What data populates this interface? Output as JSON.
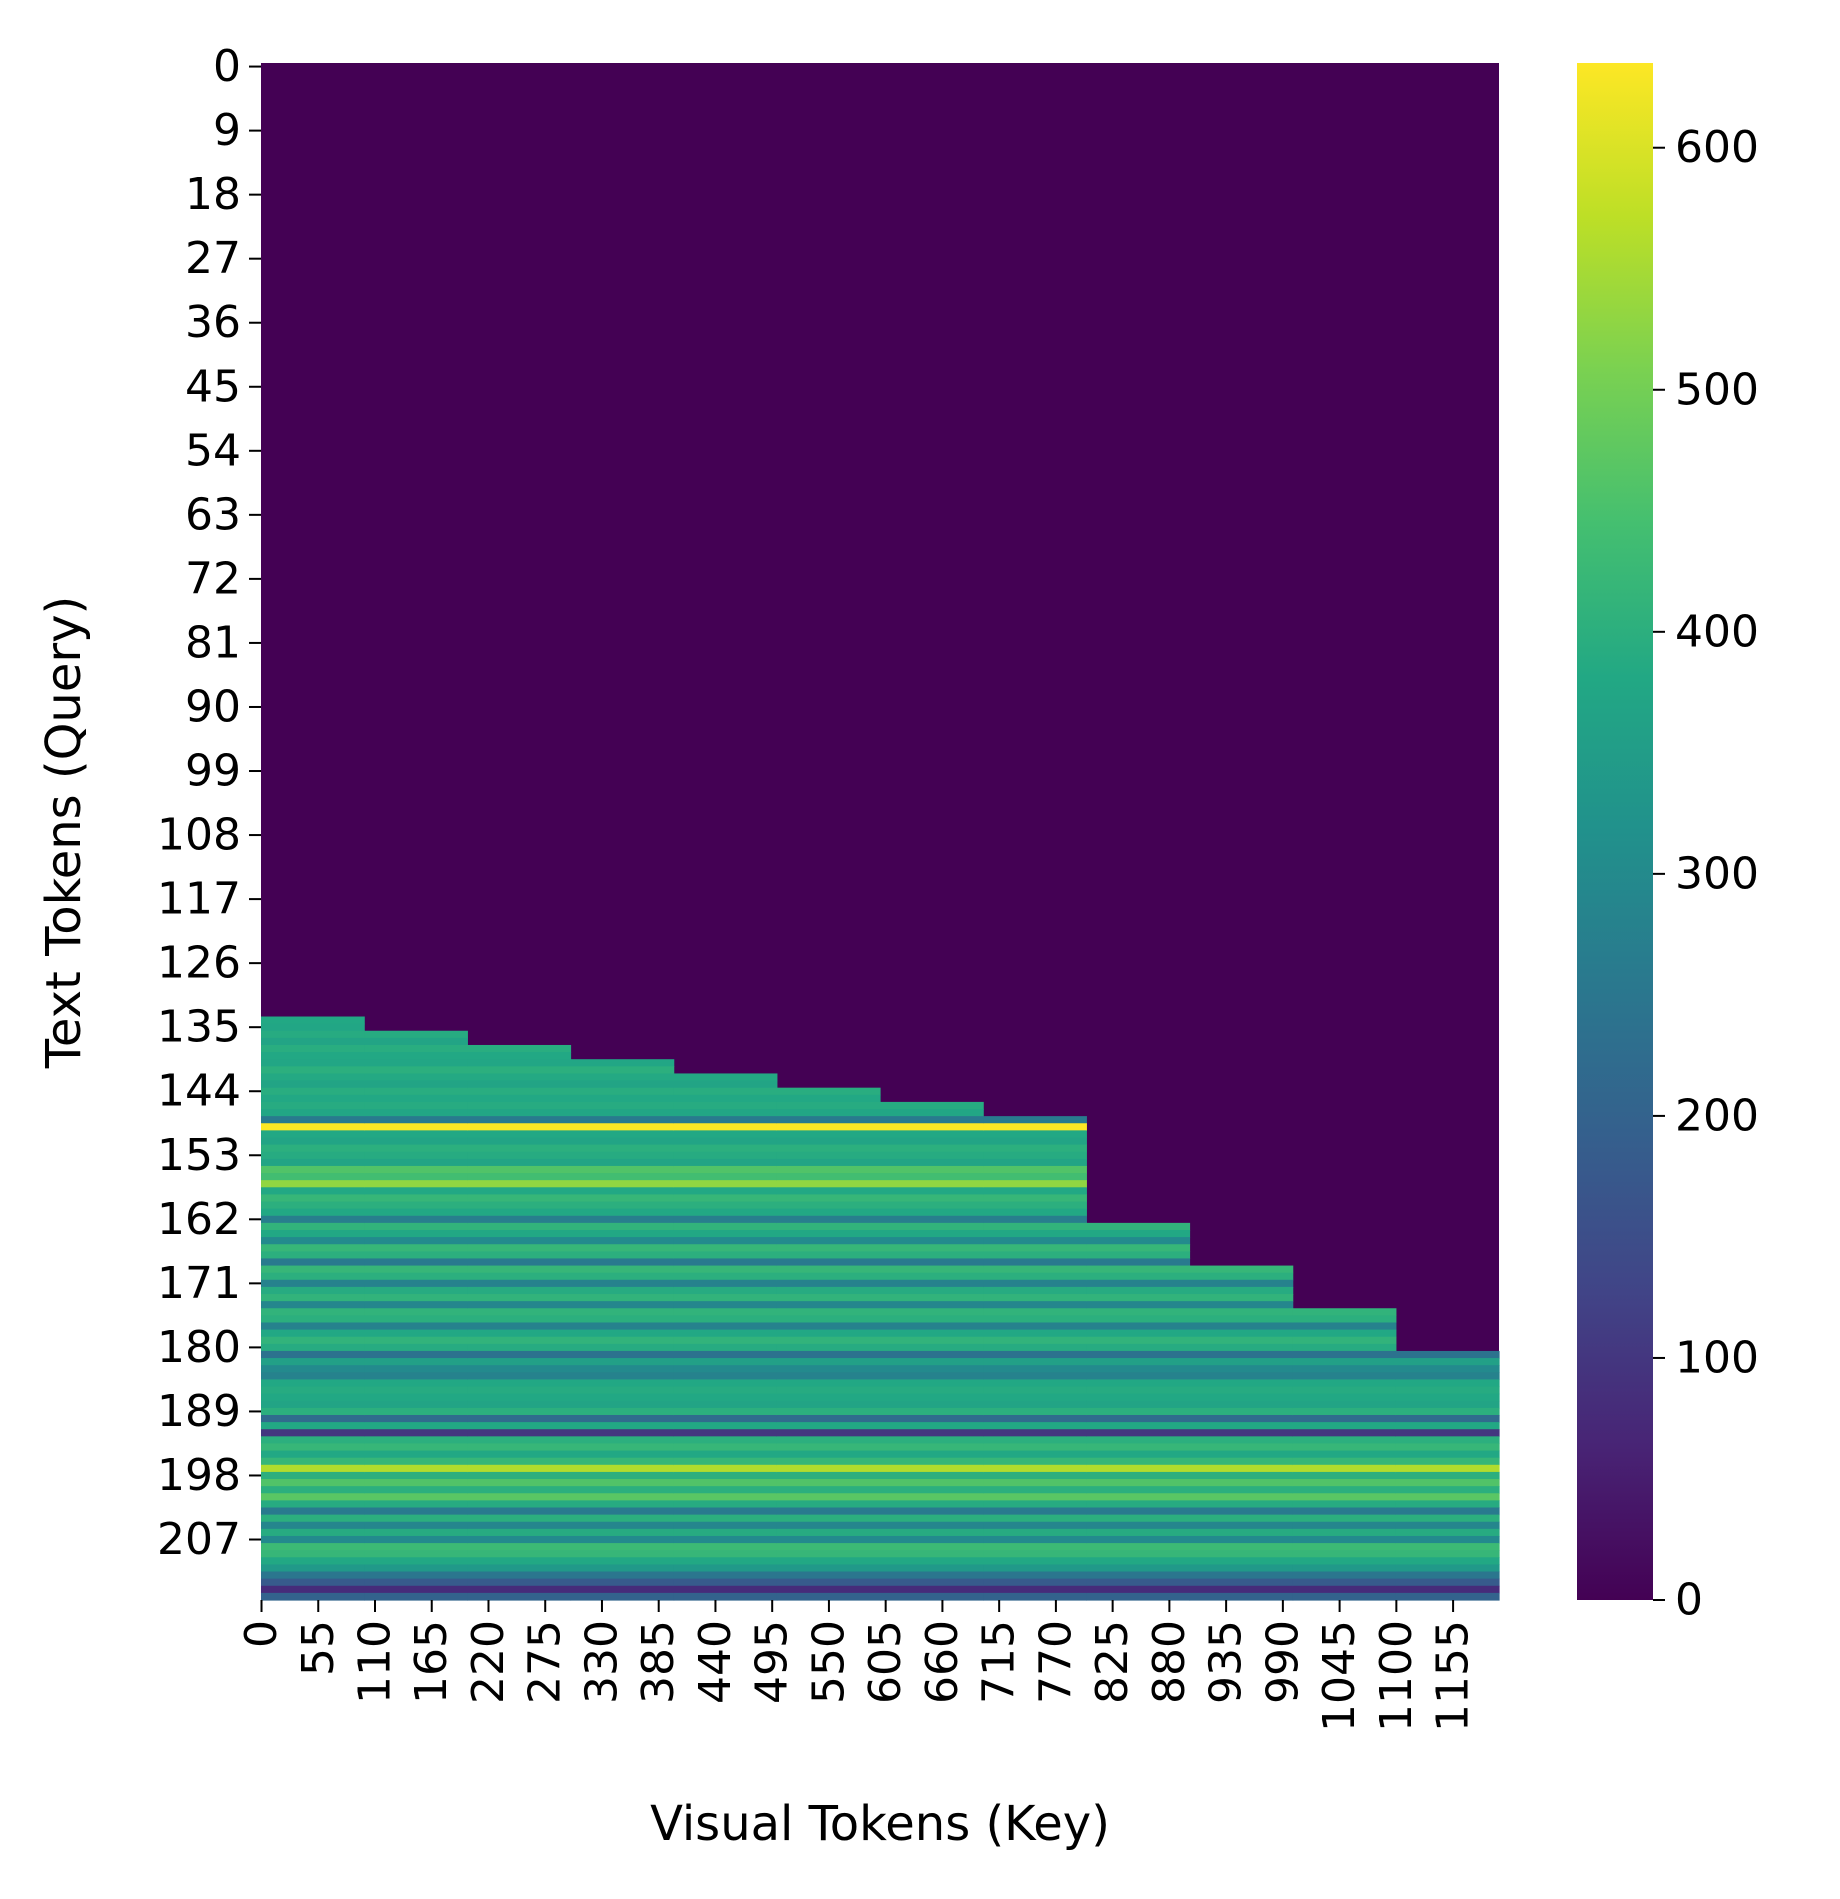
{
  "chart_data": {
    "type": "heatmap",
    "xlabel": "Visual Tokens (Key)",
    "ylabel": "Text Tokens (Query)",
    "x_tick_labels": [
      0,
      55,
      110,
      165,
      220,
      275,
      330,
      385,
      440,
      495,
      550,
      605,
      660,
      715,
      770,
      825,
      880,
      935,
      990,
      1045,
      1100,
      1155
    ],
    "y_tick_labels": [
      0,
      9,
      18,
      27,
      36,
      45,
      54,
      63,
      72,
      81,
      90,
      99,
      108,
      117,
      126,
      135,
      144,
      153,
      162,
      171,
      180,
      189,
      198,
      207
    ],
    "n_cols": 1200,
    "n_rows": 216,
    "colormap": "viridis",
    "colorbar": {
      "vmin": 0,
      "vmax": 635,
      "ticks": [
        0,
        100,
        200,
        300,
        400,
        500,
        600
      ]
    },
    "masked_value": 0,
    "stair_steps": [
      {
        "col_start": 0,
        "col_end": 100,
        "row_start": 134
      },
      {
        "col_start": 100,
        "col_end": 200,
        "row_start": 136
      },
      {
        "col_start": 200,
        "col_end": 300,
        "row_start": 138
      },
      {
        "col_start": 300,
        "col_end": 400,
        "row_start": 140
      },
      {
        "col_start": 400,
        "col_end": 500,
        "row_start": 142
      },
      {
        "col_start": 500,
        "col_end": 600,
        "row_start": 144
      },
      {
        "col_start": 600,
        "col_end": 700,
        "row_start": 146
      },
      {
        "col_start": 700,
        "col_end": 800,
        "row_start": 148
      },
      {
        "col_start": 800,
        "col_end": 900,
        "row_start": 163
      },
      {
        "col_start": 900,
        "col_end": 1000,
        "row_start": 169
      },
      {
        "col_start": 1000,
        "col_end": 1100,
        "row_start": 175
      },
      {
        "col_start": 1100,
        "col_end": 1200,
        "row_start": 181
      }
    ],
    "row_values": [
      [
        134,
        380
      ],
      [
        135,
        375
      ],
      [
        136,
        390
      ],
      [
        137,
        370
      ],
      [
        138,
        395
      ],
      [
        139,
        380
      ],
      [
        140,
        375
      ],
      [
        141,
        400
      ],
      [
        142,
        385
      ],
      [
        143,
        370
      ],
      [
        144,
        395
      ],
      [
        145,
        380
      ],
      [
        146,
        390
      ],
      [
        147,
        375
      ],
      [
        148,
        260
      ],
      [
        149,
        635
      ],
      [
        150,
        380
      ],
      [
        151,
        370
      ],
      [
        152,
        400
      ],
      [
        153,
        390
      ],
      [
        154,
        370
      ],
      [
        155,
        460
      ],
      [
        156,
        440
      ],
      [
        157,
        530
      ],
      [
        158,
        380
      ],
      [
        159,
        420
      ],
      [
        160,
        400
      ],
      [
        161,
        380
      ],
      [
        162,
        270
      ],
      [
        163,
        410
      ],
      [
        164,
        380
      ],
      [
        165,
        300
      ],
      [
        166,
        420
      ],
      [
        167,
        400
      ],
      [
        168,
        260
      ],
      [
        169,
        420
      ],
      [
        170,
        400
      ],
      [
        171,
        280
      ],
      [
        172,
        390
      ],
      [
        173,
        410
      ],
      [
        174,
        290
      ],
      [
        175,
        410
      ],
      [
        176,
        400
      ],
      [
        177,
        280
      ],
      [
        178,
        380
      ],
      [
        179,
        410
      ],
      [
        180,
        390
      ],
      [
        181,
        240
      ],
      [
        182,
        360
      ],
      [
        183,
        300
      ],
      [
        184,
        280
      ],
      [
        185,
        380
      ],
      [
        186,
        390
      ],
      [
        187,
        380
      ],
      [
        188,
        370
      ],
      [
        189,
        400
      ],
      [
        190,
        220
      ],
      [
        191,
        380
      ],
      [
        192,
        100
      ],
      [
        193,
        400
      ],
      [
        194,
        420
      ],
      [
        195,
        380
      ],
      [
        196,
        420
      ],
      [
        197,
        560
      ],
      [
        198,
        400
      ],
      [
        199,
        460
      ],
      [
        200,
        400
      ],
      [
        201,
        470
      ],
      [
        202,
        390
      ],
      [
        203,
        260
      ],
      [
        204,
        400
      ],
      [
        205,
        290
      ],
      [
        206,
        390
      ],
      [
        207,
        300
      ],
      [
        208,
        430
      ],
      [
        209,
        420
      ],
      [
        210,
        380
      ],
      [
        211,
        340
      ],
      [
        212,
        250
      ],
      [
        213,
        180
      ],
      [
        214,
        80
      ],
      [
        215,
        200
      ]
    ]
  }
}
